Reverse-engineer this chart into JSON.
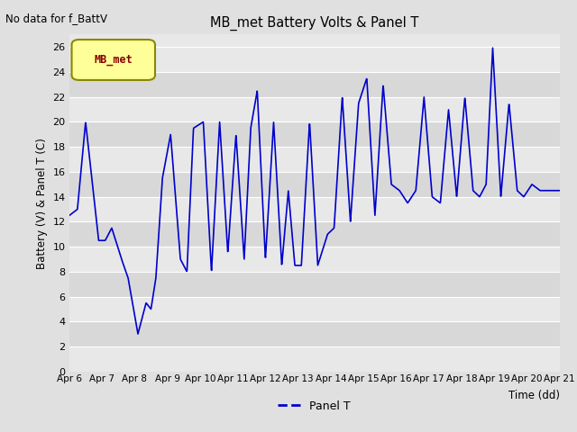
{
  "title": "MB_met Battery Volts & Panel T",
  "top_left_text": "No data for f_BattV",
  "ylabel": "Battery (V) & Panel T (C)",
  "xlabel": "Time (dd)",
  "legend_label": "Panel T",
  "legend_color": "#0000cc",
  "bg_color": "#e0e0e0",
  "plot_bg_color": "#e8e8e8",
  "line_color": "#0000cc",
  "ylim": [
    0,
    27
  ],
  "yticks": [
    0,
    2,
    4,
    6,
    8,
    10,
    12,
    14,
    16,
    18,
    20,
    22,
    24,
    26
  ],
  "xtick_labels": [
    "Apr 6",
    "Apr 7",
    "Apr 8",
    "Apr 9",
    "Apr 10",
    "Apr 11",
    "Apr 12",
    "Apr 13",
    "Apr 14",
    "Apr 15",
    "Apr 16",
    "Apr 17",
    "Apr 18",
    "Apr 19",
    "Apr 20",
    "Apr 21"
  ],
  "legend_box_facecolor": "#ffff99",
  "legend_box_edgecolor": "#888800",
  "legend_text_color": "#880000",
  "figsize": [
    6.4,
    4.8
  ],
  "dpi": 100,
  "band_colors": [
    "#e8e8e8",
    "#d8d8d8"
  ]
}
